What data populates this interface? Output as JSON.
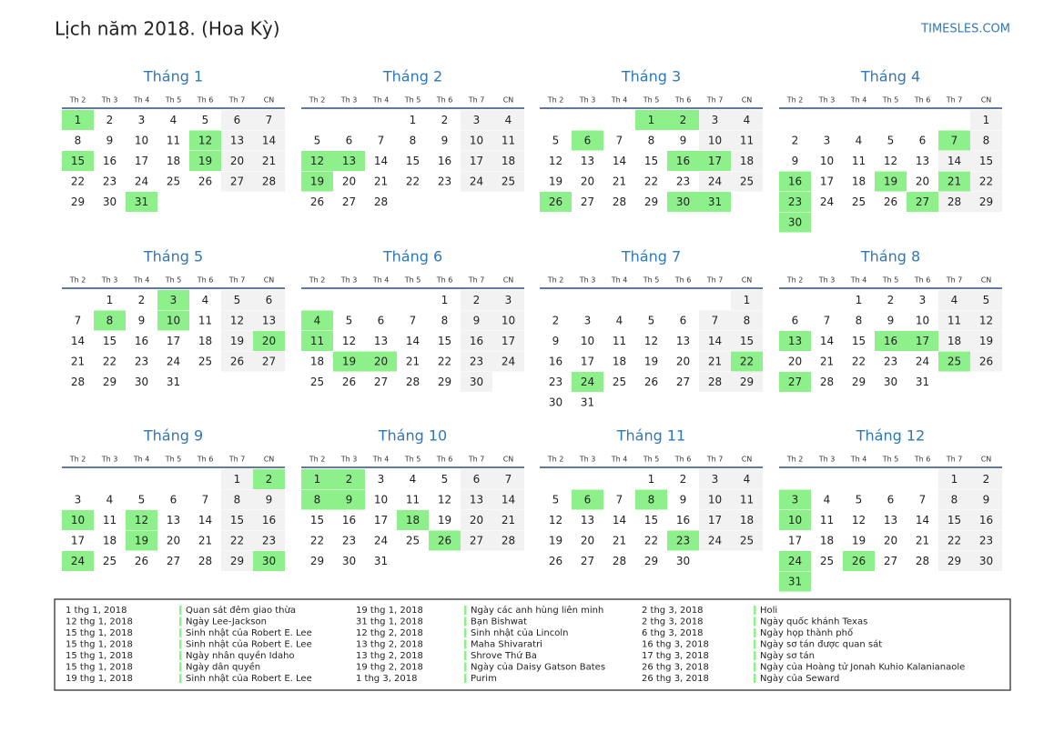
{
  "header": {
    "title": "Lịch năm 2018. (Hoa Kỳ)",
    "site": "TIMESLES.COM"
  },
  "weekdays": [
    "Th 2",
    "Th 3",
    "Th 4",
    "Th 5",
    "Th 6",
    "Th 7",
    "CN"
  ],
  "months": [
    {
      "name": "Tháng 1",
      "weeks": [
        [
          1,
          2,
          3,
          4,
          5,
          6,
          7
        ],
        [
          8,
          9,
          10,
          11,
          12,
          13,
          14
        ],
        [
          15,
          16,
          17,
          18,
          19,
          20,
          21
        ],
        [
          22,
          23,
          24,
          25,
          26,
          27,
          28
        ],
        [
          29,
          30,
          31,
          null,
          null,
          null,
          null
        ]
      ],
      "holidays": [
        1,
        12,
        15,
        19,
        31
      ]
    },
    {
      "name": "Tháng 2",
      "weeks": [
        [
          null,
          null,
          null,
          1,
          2,
          3,
          4
        ],
        [
          5,
          6,
          7,
          8,
          9,
          10,
          11
        ],
        [
          12,
          13,
          14,
          15,
          16,
          17,
          18
        ],
        [
          19,
          20,
          21,
          22,
          23,
          24,
          25
        ],
        [
          26,
          27,
          28,
          null,
          null,
          null,
          null
        ]
      ],
      "holidays": [
        12,
        13,
        19
      ]
    },
    {
      "name": "Tháng 3",
      "weeks": [
        [
          null,
          null,
          null,
          1,
          2,
          3,
          4
        ],
        [
          5,
          6,
          7,
          8,
          9,
          10,
          11
        ],
        [
          12,
          13,
          14,
          15,
          16,
          17,
          18
        ],
        [
          19,
          20,
          21,
          22,
          23,
          24,
          25
        ],
        [
          26,
          27,
          28,
          29,
          30,
          31,
          null
        ]
      ],
      "holidays": [
        1,
        2,
        6,
        16,
        17,
        26,
        30,
        31
      ]
    },
    {
      "name": "Tháng 4",
      "weeks": [
        [
          null,
          null,
          null,
          null,
          null,
          null,
          1
        ],
        [
          2,
          3,
          4,
          5,
          6,
          7,
          8
        ],
        [
          9,
          10,
          11,
          12,
          13,
          14,
          15
        ],
        [
          16,
          17,
          18,
          19,
          20,
          21,
          22
        ],
        [
          23,
          24,
          25,
          26,
          27,
          28,
          29
        ],
        [
          30,
          null,
          null,
          null,
          null,
          null,
          null
        ]
      ],
      "holidays": [
        7,
        16,
        19,
        21,
        23,
        27,
        30
      ]
    },
    {
      "name": "Tháng 5",
      "weeks": [
        [
          null,
          1,
          2,
          3,
          4,
          5,
          6
        ],
        [
          7,
          8,
          9,
          10,
          11,
          12,
          13
        ],
        [
          14,
          15,
          16,
          17,
          18,
          19,
          20
        ],
        [
          21,
          22,
          23,
          24,
          25,
          26,
          27
        ],
        [
          28,
          29,
          30,
          31,
          null,
          null,
          null
        ]
      ],
      "holidays": [
        3,
        8,
        10,
        20
      ]
    },
    {
      "name": "Tháng 6",
      "weeks": [
        [
          null,
          null,
          null,
          null,
          1,
          2,
          3
        ],
        [
          4,
          5,
          6,
          7,
          8,
          9,
          10
        ],
        [
          11,
          12,
          13,
          14,
          15,
          16,
          17
        ],
        [
          18,
          19,
          20,
          21,
          22,
          23,
          24
        ],
        [
          25,
          26,
          27,
          28,
          29,
          30,
          null
        ]
      ],
      "holidays": [
        4,
        11,
        19,
        20
      ]
    },
    {
      "name": "Tháng 7",
      "weeks": [
        [
          null,
          null,
          null,
          null,
          null,
          null,
          1
        ],
        [
          2,
          3,
          4,
          5,
          6,
          7,
          8
        ],
        [
          9,
          10,
          11,
          12,
          13,
          14,
          15
        ],
        [
          16,
          17,
          18,
          19,
          20,
          21,
          22
        ],
        [
          23,
          24,
          25,
          26,
          27,
          28,
          29
        ],
        [
          30,
          31,
          null,
          null,
          null,
          null,
          null
        ]
      ],
      "holidays": [
        22,
        24
      ]
    },
    {
      "name": "Tháng 8",
      "weeks": [
        [
          null,
          null,
          1,
          2,
          3,
          4,
          5
        ],
        [
          6,
          7,
          8,
          9,
          10,
          11,
          12
        ],
        [
          13,
          14,
          15,
          16,
          17,
          18,
          19
        ],
        [
          20,
          21,
          22,
          23,
          24,
          25,
          26
        ],
        [
          27,
          28,
          29,
          30,
          31,
          null,
          null
        ]
      ],
      "holidays": [
        13,
        16,
        17,
        25,
        27
      ]
    },
    {
      "name": "Tháng 9",
      "weeks": [
        [
          null,
          null,
          null,
          null,
          null,
          1,
          2
        ],
        [
          3,
          4,
          5,
          6,
          7,
          8,
          9
        ],
        [
          10,
          11,
          12,
          13,
          14,
          15,
          16
        ],
        [
          17,
          18,
          19,
          20,
          21,
          22,
          23
        ],
        [
          24,
          25,
          26,
          27,
          28,
          29,
          30
        ]
      ],
      "holidays": [
        2,
        10,
        12,
        19,
        24,
        30
      ]
    },
    {
      "name": "Tháng 10",
      "weeks": [
        [
          1,
          2,
          3,
          4,
          5,
          6,
          7
        ],
        [
          8,
          9,
          10,
          11,
          12,
          13,
          14
        ],
        [
          15,
          16,
          17,
          18,
          19,
          20,
          21
        ],
        [
          22,
          23,
          24,
          25,
          26,
          27,
          28
        ],
        [
          29,
          30,
          31,
          null,
          null,
          null,
          null
        ]
      ],
      "holidays": [
        1,
        2,
        8,
        9,
        18,
        26
      ]
    },
    {
      "name": "Tháng 11",
      "weeks": [
        [
          null,
          null,
          null,
          1,
          2,
          3,
          4
        ],
        [
          5,
          6,
          7,
          8,
          9,
          10,
          11
        ],
        [
          12,
          13,
          14,
          15,
          16,
          17,
          18
        ],
        [
          19,
          20,
          21,
          22,
          23,
          24,
          25
        ],
        [
          26,
          27,
          28,
          29,
          30,
          null,
          null
        ]
      ],
      "holidays": [
        6,
        8,
        23
      ]
    },
    {
      "name": "Tháng 12",
      "weeks": [
        [
          null,
          null,
          null,
          null,
          null,
          1,
          2
        ],
        [
          3,
          4,
          5,
          6,
          7,
          8,
          9
        ],
        [
          10,
          11,
          12,
          13,
          14,
          15,
          16
        ],
        [
          17,
          18,
          19,
          20,
          21,
          22,
          23
        ],
        [
          24,
          25,
          26,
          27,
          28,
          29,
          30
        ],
        [
          31,
          null,
          null,
          null,
          null,
          null,
          null
        ]
      ],
      "holidays": [
        3,
        10,
        24,
        26,
        31
      ]
    }
  ],
  "legend": [
    [
      {
        "date": "1 thg 1, 2018",
        "name": "Quan sát đêm giao thừa"
      },
      {
        "date": "12 thg 1, 2018",
        "name": "Ngày Lee-Jackson"
      },
      {
        "date": "15 thg 1, 2018",
        "name": "Sinh nhật của Robert E. Lee"
      },
      {
        "date": "15 thg 1, 2018",
        "name": "Sinh nhật của Robert E. Lee"
      },
      {
        "date": "15 thg 1, 2018",
        "name": "Ngày nhân quyền Idaho"
      },
      {
        "date": "15 thg 1, 2018",
        "name": "Ngày dân quyền"
      },
      {
        "date": "19 thg 1, 2018",
        "name": "Sinh nhật của Robert E. Lee"
      }
    ],
    [
      {
        "date": "19 thg 1, 2018",
        "name": "Ngày các anh hùng liên minh"
      },
      {
        "date": "31 thg 1, 2018",
        "name": "Bạn Bishwat"
      },
      {
        "date": "12 thg 2, 2018",
        "name": "Sinh nhật của Lincoln"
      },
      {
        "date": "13 thg 2, 2018",
        "name": "Maha Shivaratri"
      },
      {
        "date": "13 thg 2, 2018",
        "name": "Shrove Thứ Ba"
      },
      {
        "date": "19 thg 2, 2018",
        "name": "Ngày của Daisy Gatson Bates"
      },
      {
        "date": "1 thg 3, 2018",
        "name": "Purim"
      }
    ],
    [
      {
        "date": "2 thg 3, 2018",
        "name": "Holi"
      },
      {
        "date": "2 thg 3, 2018",
        "name": "Ngày quốc khánh Texas"
      },
      {
        "date": "6 thg 3, 2018",
        "name": "Ngày họp thành phố"
      },
      {
        "date": "16 thg 3, 2018",
        "name": "Ngày sơ tán được quan sát"
      },
      {
        "date": "17 thg 3, 2018",
        "name": "Ngày sơ tán"
      },
      {
        "date": "26 thg 3, 2018",
        "name": "Ngày của Hoàng tử Jonah Kuhio Kalanianaole"
      },
      {
        "date": "26 thg 3, 2018",
        "name": "Ngày của Seward"
      }
    ]
  ]
}
